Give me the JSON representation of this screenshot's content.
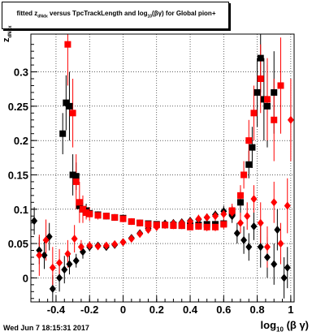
{
  "title": {
    "main": "fitted  z",
    "sub": "dNdx",
    "rest": " versus TpcTrackLength and log",
    "sub2": "10",
    "end": "(βγ) for Global pion+"
  },
  "footer": "Wed Jun  7 18:15:31 2017",
  "xlabel": {
    "main": "log",
    "sub": "10",
    "rest": " (β γ)"
  },
  "ylabel": {
    "main": "z",
    "sub": "dNdx"
  },
  "colors": {
    "red": "#ff0000",
    "black": "#000000"
  },
  "chart_data": {
    "type": "scatter",
    "xlim": [
      -0.55,
      1.02
    ],
    "ylim": [
      -0.035,
      0.355
    ],
    "xticks": [
      -0.4,
      -0.2,
      0,
      0.2,
      0.4,
      0.6,
      0.8,
      1
    ],
    "xticklabels": [
      "-0.4",
      "-0.2",
      "0",
      "0.2",
      "0.4",
      "0.6",
      "0.8",
      "1"
    ],
    "yticks": [
      0,
      0.05,
      0.1,
      0.15,
      0.2,
      0.25,
      0.3
    ],
    "yticklabels": [
      "0",
      "0.05",
      "0.1",
      "0.15",
      "0.2",
      "0.25",
      "0.3"
    ],
    "grid": true,
    "series": [
      {
        "color": "#000000",
        "marker": "square",
        "points": [
          [
            -0.36,
            0.21,
            0.03
          ],
          [
            -0.34,
            0.255,
            0.04
          ],
          [
            -0.32,
            0.25,
            0.05
          ],
          [
            -0.3,
            0.15,
            0.03
          ],
          [
            -0.28,
            0.148,
            0.02
          ],
          [
            -0.26,
            0.105,
            0.01
          ],
          [
            -0.24,
            0.1,
            0.01
          ],
          [
            -0.22,
            0.098,
            0.01
          ],
          [
            -0.2,
            0.094,
            0.005
          ],
          [
            -0.15,
            0.092,
            0.004
          ],
          [
            -0.1,
            0.09,
            0.004
          ],
          [
            -0.05,
            0.088,
            0.004
          ],
          [
            0,
            0.087,
            0.004
          ],
          [
            0.05,
            0.082,
            0.004
          ],
          [
            0.1,
            0.08,
            0.004
          ],
          [
            0.15,
            0.079,
            0.004
          ],
          [
            0.2,
            0.078,
            0.004
          ],
          [
            0.25,
            0.077,
            0.004
          ],
          [
            0.3,
            0.077,
            0.004
          ],
          [
            0.35,
            0.076,
            0.004
          ],
          [
            0.4,
            0.076,
            0.004
          ],
          [
            0.45,
            0.077,
            0.004
          ],
          [
            0.5,
            0.078,
            0.005
          ],
          [
            0.55,
            0.078,
            0.005
          ],
          [
            0.6,
            0.079,
            0.006
          ],
          [
            0.65,
            0.095,
            0.01
          ],
          [
            0.7,
            0.11,
            0.02
          ],
          [
            0.75,
            0.165,
            0.02
          ],
          [
            0.77,
            0.19,
            0.03
          ],
          [
            0.8,
            0.27,
            0.05
          ],
          [
            0.82,
            0.32,
            0.05
          ],
          [
            0.84,
            0.26,
            0.06
          ],
          [
            0.86,
            0.25,
            0.06
          ],
          [
            0.9,
            0.27,
            0.06
          ]
        ]
      },
      {
        "color": "#000000",
        "marker": "diamond",
        "points": [
          [
            -0.53,
            0.083,
            0.02
          ],
          [
            -0.5,
            0.04,
            0.02
          ],
          [
            -0.47,
            0.033,
            0.02
          ],
          [
            -0.44,
            0.06,
            0.02
          ],
          [
            -0.42,
            -0.016,
            0.02
          ],
          [
            -0.38,
            0.0,
            0.02
          ],
          [
            -0.35,
            0.012,
            0.02
          ],
          [
            -0.32,
            0.02,
            0.015
          ],
          [
            -0.28,
            0.025,
            0.01
          ],
          [
            -0.24,
            0.038,
            0.01
          ],
          [
            -0.2,
            0.045,
            0.006
          ],
          [
            -0.15,
            0.047,
            0.005
          ],
          [
            -0.1,
            0.045,
            0.005
          ],
          [
            -0.05,
            0.048,
            0.004
          ],
          [
            0,
            0.052,
            0.004
          ],
          [
            0.05,
            0.058,
            0.004
          ],
          [
            0.1,
            0.065,
            0.004
          ],
          [
            0.15,
            0.072,
            0.004
          ],
          [
            0.2,
            0.076,
            0.004
          ],
          [
            0.25,
            0.079,
            0.004
          ],
          [
            0.3,
            0.08,
            0.004
          ],
          [
            0.35,
            0.081,
            0.004
          ],
          [
            0.4,
            0.083,
            0.004
          ],
          [
            0.45,
            0.085,
            0.004
          ],
          [
            0.5,
            0.088,
            0.005
          ],
          [
            0.55,
            0.092,
            0.006
          ],
          [
            0.6,
            0.097,
            0.008
          ],
          [
            0.65,
            0.09,
            0.01
          ],
          [
            0.68,
            0.065,
            0.015
          ],
          [
            0.72,
            0.055,
            0.02
          ],
          [
            0.75,
            0.045,
            0.02
          ],
          [
            0.78,
            0.075,
            0.02
          ],
          [
            0.82,
            0.045,
            0.03
          ],
          [
            0.86,
            0.03,
            0.03
          ],
          [
            0.9,
            0.02,
            0.03
          ],
          [
            0.92,
            0.07,
            0.03
          ],
          [
            0.96,
            0.0,
            0.03
          ],
          [
            0.98,
            0.015,
            0.03
          ]
        ]
      },
      {
        "color": "#ff0000",
        "marker": "square",
        "points": [
          [
            -0.33,
            0.34,
            0.06
          ],
          [
            -0.3,
            0.24,
            0.05
          ],
          [
            -0.28,
            0.14,
            0.04
          ],
          [
            -0.26,
            0.11,
            0.03
          ],
          [
            -0.24,
            0.1,
            0.02
          ],
          [
            -0.22,
            0.095,
            0.01
          ],
          [
            -0.2,
            0.093,
            0.01
          ],
          [
            -0.15,
            0.091,
            0.006
          ],
          [
            -0.1,
            0.09,
            0.005
          ],
          [
            -0.05,
            0.088,
            0.005
          ],
          [
            0,
            0.086,
            0.005
          ],
          [
            0.05,
            0.082,
            0.005
          ],
          [
            0.1,
            0.08,
            0.005
          ],
          [
            0.15,
            0.078,
            0.005
          ],
          [
            0.2,
            0.077,
            0.005
          ],
          [
            0.25,
            0.077,
            0.005
          ],
          [
            0.3,
            0.076,
            0.005
          ],
          [
            0.35,
            0.076,
            0.005
          ],
          [
            0.4,
            0.074,
            0.005
          ],
          [
            0.45,
            0.075,
            0.005
          ],
          [
            0.5,
            0.074,
            0.006
          ],
          [
            0.55,
            0.074,
            0.006
          ],
          [
            0.6,
            0.078,
            0.007
          ],
          [
            0.65,
            0.098,
            0.01
          ],
          [
            0.7,
            0.12,
            0.015
          ],
          [
            0.72,
            0.15,
            0.02
          ],
          [
            0.75,
            0.2,
            0.03
          ],
          [
            0.78,
            0.24,
            0.04
          ],
          [
            0.82,
            0.29,
            0.05
          ],
          [
            0.86,
            0.26,
            0.06
          ],
          [
            0.9,
            0.23,
            0.06
          ],
          [
            0.94,
            0.28,
            0.07
          ]
        ]
      },
      {
        "color": "#ff0000",
        "marker": "diamond",
        "points": [
          [
            -0.5,
            0.033,
            0.03
          ],
          [
            -0.46,
            0.055,
            0.03
          ],
          [
            -0.42,
            0.015,
            0.03
          ],
          [
            -0.38,
            0.022,
            0.02
          ],
          [
            -0.33,
            0.035,
            0.02
          ],
          [
            -0.29,
            0.057,
            0.02
          ],
          [
            -0.25,
            0.045,
            0.01
          ],
          [
            -0.2,
            0.047,
            0.006
          ],
          [
            -0.15,
            0.046,
            0.005
          ],
          [
            -0.1,
            0.047,
            0.005
          ],
          [
            -0.05,
            0.049,
            0.005
          ],
          [
            0,
            0.052,
            0.005
          ],
          [
            0.05,
            0.057,
            0.005
          ],
          [
            0.1,
            0.064,
            0.005
          ],
          [
            0.15,
            0.07,
            0.005
          ],
          [
            0.2,
            0.074,
            0.005
          ],
          [
            0.25,
            0.077,
            0.005
          ],
          [
            0.3,
            0.079,
            0.005
          ],
          [
            0.35,
            0.08,
            0.005
          ],
          [
            0.4,
            0.082,
            0.005
          ],
          [
            0.45,
            0.086,
            0.006
          ],
          [
            0.5,
            0.088,
            0.006
          ],
          [
            0.55,
            0.09,
            0.007
          ],
          [
            0.6,
            0.093,
            0.008
          ],
          [
            0.65,
            0.095,
            0.01
          ],
          [
            0.7,
            0.08,
            0.015
          ],
          [
            0.74,
            0.09,
            0.02
          ],
          [
            0.78,
            0.115,
            0.02
          ],
          [
            0.82,
            0.08,
            0.03
          ],
          [
            0.86,
            0.045,
            0.03
          ],
          [
            0.9,
            0.11,
            0.03
          ],
          [
            0.94,
            0.05,
            0.03
          ],
          [
            0.98,
            0.105,
            0.04
          ],
          [
            1.0,
            0.23,
            0.06
          ]
        ]
      }
    ]
  }
}
